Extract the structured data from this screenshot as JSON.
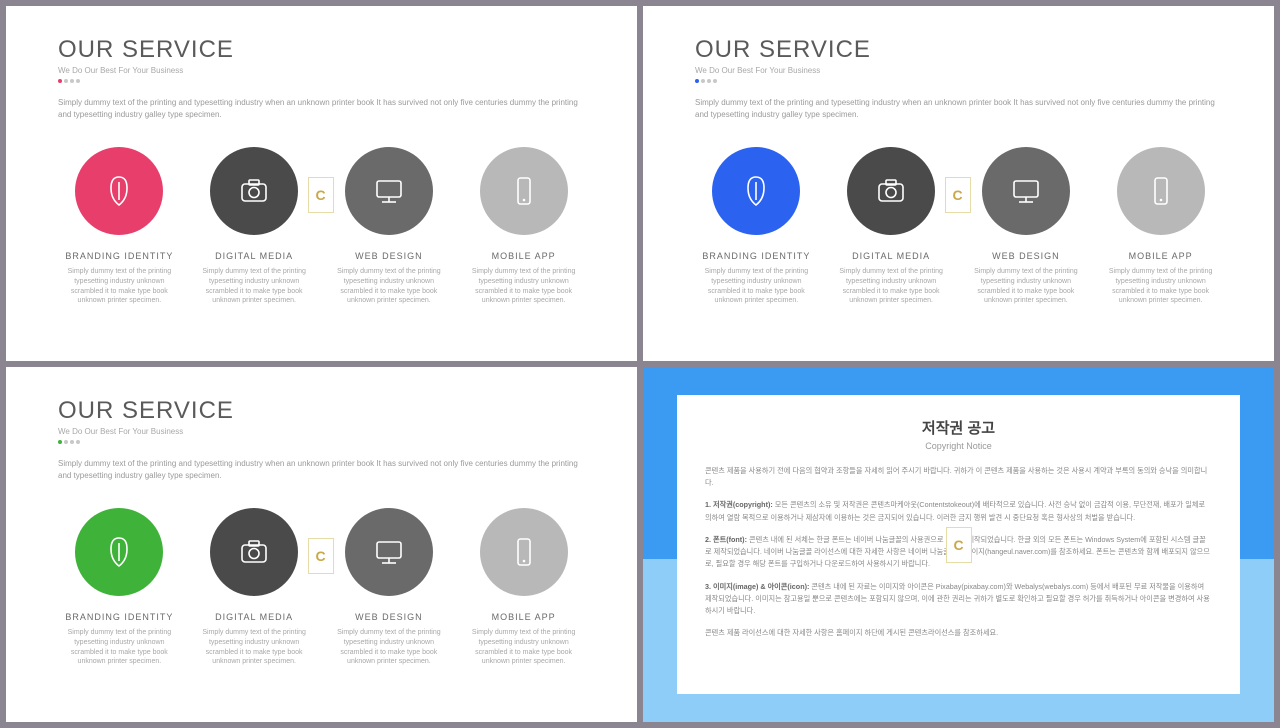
{
  "slides": [
    {
      "accent": "#e83e6b",
      "dot_accent": "#e83e6b"
    },
    {
      "accent": "#2b62f0",
      "dot_accent": "#2b62f0"
    },
    {
      "accent": "#3fb23a",
      "dot_accent": "#3fb23a"
    }
  ],
  "header": {
    "title": "OUR SERVICE",
    "subtitle": "We Do Our Best For Your Business",
    "intro": "Simply dummy text of the printing and typesetting industry when an unknown printer book It has survived not only five centuries dummy the printing and typesetting industry galley type specimen."
  },
  "circle_colors": [
    "",
    "#4a4a4a",
    "#6a6a6a",
    "#b8b8b8"
  ],
  "items": [
    {
      "icon": "leaf",
      "title": "BRANDING  IDENTITY",
      "desc": "Simply dummy text of the printing typesetting industry unknown scrambled it to make type book unknown printer specimen."
    },
    {
      "icon": "camera",
      "title": "DIGITAL  MEDIA",
      "desc": "Simply dummy text of the printing typesetting industry unknown scrambled it to make type book unknown printer specimen."
    },
    {
      "icon": "monitor",
      "title": "WEB  DESIGN",
      "desc": "Simply dummy text of the printing typesetting industry unknown scrambled it to make type book unknown printer specimen."
    },
    {
      "icon": "phone",
      "title": "MOBILE  APP",
      "desc": "Simply dummy text of the printing typesetting industry unknown scrambled it to make type book unknown printer specimen."
    }
  ],
  "badge_text": "C",
  "notice": {
    "title": "저작권 공고",
    "subtitle": "Copyright Notice",
    "p1": "콘텐츠 제품을 사용하기 전에 다음의 협약과 조항들을 자세히 읽어 주시기 바랍니다. 귀하가 이 콘텐츠 제품을 사용하는 것은 사용시 계약과 부록의 동의와 승낙을 의미합니다.",
    "p2_label": "1. 저작권(copyright):",
    "p2": " 모든 콘텐츠의 소유 및 저작권은 콘텐츠마케아웃(Contentstokeout)에 배타적으로 있습니다. 사전 승낙 없이 금감적 이용, 무단전재, 배포가 일체로 의하여 열람 목적으로 이용하거나 제삼자에 이용하는 것은 금지되어 있습니다. 이러한 금지 행위 발견 시 중단요청 혹은 형사상의 처벌을 받습니다.",
    "p3_label": "2. 폰트(font):",
    "p3": " 콘텐츠 내에 된 서체는 한글 폰트는 네이버 나눔글꼴의 사용권으로 그대로 제작되었습니다. 한글 외의 모든 폰트는 Windows System에 포함된 시스템 글꼴로 제작되었습니다. 네이버 나눔글꼴 라이선스에 대한 자세한 사항은 네이버 나눔글꼴 홈페이지(hangeul.naver.com)를 참조하세요. 폰트는 콘텐츠와 함께 배포되지 않으므로, 필요할 경우 해당 폰트를 구입하거나 다운로드하여 사용하시기 바랍니다.",
    "p4_label": "3. 이미지(image) & 아이콘(icon):",
    "p4": " 콘텐츠 내에 된 자료는 이미지와 아이콘은 Pixabay(pixabay.com)와 Webalys(webalys.com) 등에서 배포된 무료 저작물을 이용하여 제작되었습니다. 이미지는 참고용일 뿐으로 콘텐츠에는 포함되지 않으며, 이에 관한 권리는 귀하가 별도로 확인하고 필요할 경우 허가를 취득하거나 아이콘을 변경하여 사용하시기 바랍니다.",
    "p5": "콘텐츠 제품 라이선스에 대한 자세한 사항은 홈페이지 하단에 게시된 콘텐츠라이선스를 참조하세요."
  }
}
